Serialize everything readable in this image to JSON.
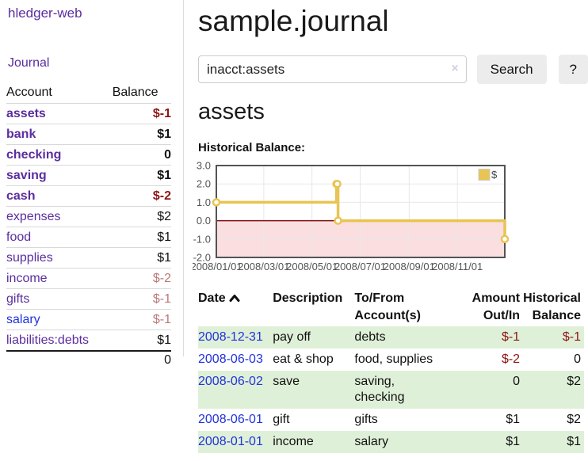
{
  "app": {
    "title": "hledger-web"
  },
  "sidebar": {
    "journal_label": "Journal",
    "account_header": "Account",
    "balance_header": "Balance",
    "accounts": [
      {
        "name": "assets",
        "balance": "$-1"
      },
      {
        "name": "bank",
        "balance": "$1"
      },
      {
        "name": "checking",
        "balance": "0"
      },
      {
        "name": "saving",
        "balance": "$1"
      },
      {
        "name": "cash",
        "balance": "$-2"
      },
      {
        "name": "expenses",
        "balance": "$2"
      },
      {
        "name": "food",
        "balance": "$1"
      },
      {
        "name": "supplies",
        "balance": "$1"
      },
      {
        "name": "income",
        "balance": "$-2"
      },
      {
        "name": "gifts",
        "balance": "$-1"
      },
      {
        "name": "salary",
        "balance": "$-1"
      },
      {
        "name": "liabilities:debts",
        "balance": "$1"
      }
    ],
    "total": "0"
  },
  "main": {
    "title": "sample.journal",
    "search": {
      "query": "inacct:assets",
      "clear_icon": "×",
      "button_label": "Search",
      "help_label": "?"
    },
    "account_heading": "assets",
    "chart_heading": "Historical Balance:",
    "transactions": {
      "columns": {
        "date": "Date",
        "description": "Description",
        "tofrom_line1": "To/From",
        "tofrom_line2": "Account(s)",
        "amount_line1": "Amount",
        "amount_line2": "Out/In",
        "historical_line1": "Historical",
        "historical_line2": "Balance"
      },
      "rows": [
        {
          "date": "2008-12-31",
          "description": "pay off",
          "accounts": "debts",
          "amount": "$-1",
          "balance": "$-1"
        },
        {
          "date": "2008-06-03",
          "description": "eat & shop",
          "accounts": "food, supplies",
          "amount": "$-2",
          "balance": "0"
        },
        {
          "date": "2008-06-02",
          "description": "save",
          "accounts": "saving,\nchecking",
          "amount": "0",
          "balance": "$2"
        },
        {
          "date": "2008-06-01",
          "description": "gift",
          "accounts": "gifts",
          "amount": "$1",
          "balance": "$2"
        },
        {
          "date": "2008-01-01",
          "description": "income",
          "accounts": "salary",
          "amount": "$1",
          "balance": "$1"
        }
      ]
    }
  },
  "chart_data": {
    "type": "line",
    "style": "step",
    "title": "Historical Balance",
    "series": [
      {
        "name": "$",
        "x": [
          "2008-01-01",
          "2008-06-01",
          "2008-06-02",
          "2008-06-03",
          "2008-12-31"
        ],
        "values": [
          1,
          2,
          2,
          0,
          -1
        ]
      }
    ],
    "xlim": [
      "2008-01-01",
      "2008-12-31"
    ],
    "ylim": [
      -2,
      3
    ],
    "yticks": [
      {
        "label": "3.0",
        "value": 3
      },
      {
        "label": "2.0",
        "value": 2
      },
      {
        "label": "1.0",
        "value": 1
      },
      {
        "label": "0.0",
        "value": 0
      },
      {
        "label": "-1.0",
        "value": -1
      },
      {
        "label": "-2.0",
        "value": -2
      }
    ],
    "xticks": [
      {
        "label": "2008/01/01",
        "value": "2008-01-01"
      },
      {
        "label": "2008/03/01",
        "value": "2008-03-01"
      },
      {
        "label": "2008/05/01",
        "value": "2008-05-01"
      },
      {
        "label": "2008/07/01",
        "value": "2008-07-01"
      },
      {
        "label": "2008/09/01",
        "value": "2008-09-01"
      },
      {
        "label": "2008/11/01",
        "value": "2008-11-01"
      }
    ],
    "legend": {
      "position": "top-right",
      "label": "$"
    },
    "grid": true,
    "colors": {
      "line": "#e8c452",
      "negative_region": "#fbdee0",
      "zero_line": "#7e1010",
      "border": "#545454",
      "grid": "#e8e8e8",
      "tick_text": "#545454"
    }
  },
  "colors": {
    "link_purple": "#5b2d9f",
    "link_blue": "#2233dd",
    "negative_strong": "#8f1414",
    "negative_soft": "#bc7878",
    "row_green": "#dff0d8",
    "button_bg": "#ececec"
  }
}
